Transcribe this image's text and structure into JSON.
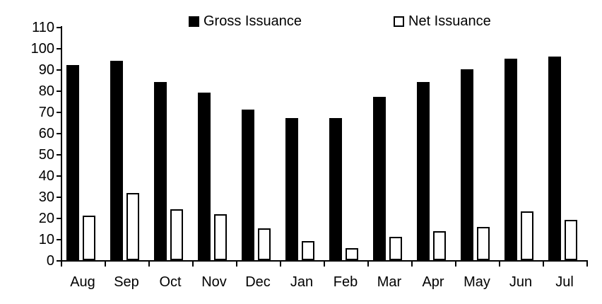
{
  "chart_data": {
    "type": "bar",
    "title": "",
    "xlabel": "",
    "ylabel": "",
    "categories": [
      "Aug",
      "Sep",
      "Oct",
      "Nov",
      "Dec",
      "Jan",
      "Feb",
      "Mar",
      "Apr",
      "May",
      "Jun",
      "Jul"
    ],
    "series": [
      {
        "name": "Gross Issuance",
        "values": [
          92,
          94,
          84,
          79,
          71,
          67,
          67,
          77,
          84,
          90,
          95,
          96
        ],
        "fill": "#000000",
        "border": "#000000"
      },
      {
        "name": "Net Issuance",
        "values": [
          21,
          31.5,
          24,
          21.5,
          15,
          9,
          5.5,
          11,
          13.5,
          15.5,
          23,
          19
        ],
        "fill": "#ffffff",
        "border": "#000000"
      }
    ],
    "ylim": [
      0,
      110
    ],
    "yticks": [
      0,
      10,
      20,
      30,
      40,
      50,
      60,
      70,
      80,
      90,
      100,
      110
    ],
    "grid": false,
    "legend_position": "top",
    "axis_color": "#000000",
    "background": "#ffffff"
  }
}
